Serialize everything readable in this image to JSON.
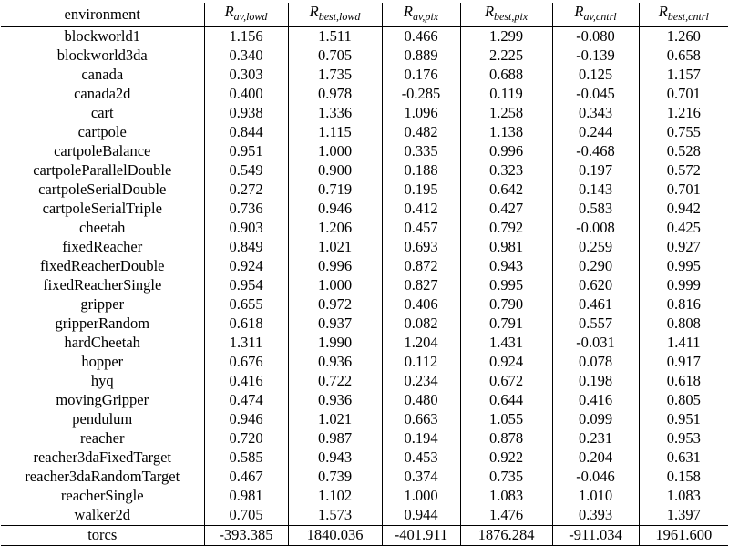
{
  "table": {
    "header": {
      "environment": "environment",
      "metrics": [
        {
          "main": "R",
          "sub": "av,lowd"
        },
        {
          "main": "R",
          "sub": "best,lowd"
        },
        {
          "main": "R",
          "sub": "av,pix"
        },
        {
          "main": "R",
          "sub": "best,pix"
        },
        {
          "main": "R",
          "sub": "av,cntrl"
        },
        {
          "main": "R",
          "sub": "best,cntrl"
        }
      ]
    },
    "rows": [
      {
        "env": "blockworld1",
        "values": [
          "1.156",
          "1.511",
          "0.466",
          "1.299",
          "-0.080",
          "1.260"
        ]
      },
      {
        "env": "blockworld3da",
        "values": [
          "0.340",
          "0.705",
          "0.889",
          "2.225",
          "-0.139",
          "0.658"
        ]
      },
      {
        "env": "canada",
        "values": [
          "0.303",
          "1.735",
          "0.176",
          "0.688",
          "0.125",
          "1.157"
        ]
      },
      {
        "env": "canada2d",
        "values": [
          "0.400",
          "0.978",
          "-0.285",
          "0.119",
          "-0.045",
          "0.701"
        ]
      },
      {
        "env": "cart",
        "values": [
          "0.938",
          "1.336",
          "1.096",
          "1.258",
          "0.343",
          "1.216"
        ]
      },
      {
        "env": "cartpole",
        "values": [
          "0.844",
          "1.115",
          "0.482",
          "1.138",
          "0.244",
          "0.755"
        ]
      },
      {
        "env": "cartpoleBalance",
        "values": [
          "0.951",
          "1.000",
          "0.335",
          "0.996",
          "-0.468",
          "0.528"
        ]
      },
      {
        "env": "cartpoleParallelDouble",
        "values": [
          "0.549",
          "0.900",
          "0.188",
          "0.323",
          "0.197",
          "0.572"
        ]
      },
      {
        "env": "cartpoleSerialDouble",
        "values": [
          "0.272",
          "0.719",
          "0.195",
          "0.642",
          "0.143",
          "0.701"
        ]
      },
      {
        "env": "cartpoleSerialTriple",
        "values": [
          "0.736",
          "0.946",
          "0.412",
          "0.427",
          "0.583",
          "0.942"
        ]
      },
      {
        "env": "cheetah",
        "values": [
          "0.903",
          "1.206",
          "0.457",
          "0.792",
          "-0.008",
          "0.425"
        ]
      },
      {
        "env": "fixedReacher",
        "values": [
          "0.849",
          "1.021",
          "0.693",
          "0.981",
          "0.259",
          "0.927"
        ]
      },
      {
        "env": "fixedReacherDouble",
        "values": [
          "0.924",
          "0.996",
          "0.872",
          "0.943",
          "0.290",
          "0.995"
        ]
      },
      {
        "env": "fixedReacherSingle",
        "values": [
          "0.954",
          "1.000",
          "0.827",
          "0.995",
          "0.620",
          "0.999"
        ]
      },
      {
        "env": "gripper",
        "values": [
          "0.655",
          "0.972",
          "0.406",
          "0.790",
          "0.461",
          "0.816"
        ]
      },
      {
        "env": "gripperRandom",
        "values": [
          "0.618",
          "0.937",
          "0.082",
          "0.791",
          "0.557",
          "0.808"
        ]
      },
      {
        "env": "hardCheetah",
        "values": [
          "1.311",
          "1.990",
          "1.204",
          "1.431",
          "-0.031",
          "1.411"
        ]
      },
      {
        "env": "hopper",
        "values": [
          "0.676",
          "0.936",
          "0.112",
          "0.924",
          "0.078",
          "0.917"
        ]
      },
      {
        "env": "hyq",
        "values": [
          "0.416",
          "0.722",
          "0.234",
          "0.672",
          "0.198",
          "0.618"
        ]
      },
      {
        "env": "movingGripper",
        "values": [
          "0.474",
          "0.936",
          "0.480",
          "0.644",
          "0.416",
          "0.805"
        ]
      },
      {
        "env": "pendulum",
        "values": [
          "0.946",
          "1.021",
          "0.663",
          "1.055",
          "0.099",
          "0.951"
        ]
      },
      {
        "env": "reacher",
        "values": [
          "0.720",
          "0.987",
          "0.194",
          "0.878",
          "0.231",
          "0.953"
        ]
      },
      {
        "env": "reacher3daFixedTarget",
        "values": [
          "0.585",
          "0.943",
          "0.453",
          "0.922",
          "0.204",
          "0.631"
        ]
      },
      {
        "env": "reacher3daRandomTarget",
        "values": [
          "0.467",
          "0.739",
          "0.374",
          "0.735",
          "-0.046",
          "0.158"
        ]
      },
      {
        "env": "reacherSingle",
        "values": [
          "0.981",
          "1.102",
          "1.000",
          "1.083",
          "1.010",
          "1.083"
        ]
      },
      {
        "env": "walker2d",
        "values": [
          "0.705",
          "1.573",
          "0.944",
          "1.476",
          "0.393",
          "1.397"
        ]
      }
    ],
    "tail_rows": [
      {
        "env": "torcs",
        "values": [
          "-393.385",
          "1840.036",
          "-401.911",
          "1876.284",
          "-911.034",
          "1961.600"
        ]
      }
    ]
  }
}
